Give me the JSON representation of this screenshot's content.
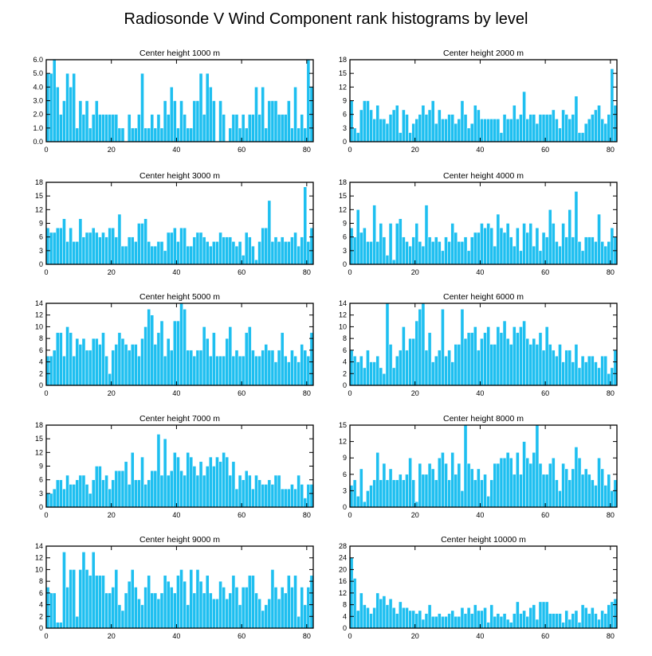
{
  "figure_title": "Radiosonde V Wind Component rank histograms by level",
  "colors": {
    "bar": "#1ebff0",
    "frame": "#000000",
    "background": "#ffffff"
  },
  "chart_data": [
    {
      "type": "bar",
      "title": "Center height 1000 m",
      "x_start": 0,
      "xlim": [
        0,
        82
      ],
      "xticks": [
        "0",
        "20",
        "40",
        "60",
        "80"
      ],
      "ylim": [
        0,
        6
      ],
      "yticks": [
        "0.0",
        "1.0",
        "2.0",
        "3.0",
        "4.0",
        "5.0",
        "6.0"
      ],
      "values": [
        5,
        5,
        6,
        4,
        2,
        3,
        5,
        4,
        5,
        1,
        3,
        2,
        3,
        1,
        2,
        3,
        2,
        2,
        2,
        2,
        2,
        2,
        1,
        1,
        0,
        2,
        1,
        1,
        2,
        5,
        1,
        1,
        2,
        1,
        2,
        1,
        3,
        2,
        4,
        3,
        1,
        3,
        2,
        1,
        1,
        3,
        3,
        5,
        2,
        5,
        4,
        3,
        0,
        3,
        2,
        0,
        1,
        2,
        2,
        1,
        2,
        1,
        2,
        2,
        4,
        2,
        4,
        1,
        3,
        3,
        3,
        2,
        2,
        2,
        3,
        1,
        4,
        1,
        2,
        1,
        6,
        4
      ],
      "xlabel": "",
      "ylabel": ""
    },
    {
      "type": "bar",
      "title": "Center height 2000 m",
      "x_start": 0,
      "xlim": [
        0,
        82
      ],
      "xticks": [
        "0",
        "20",
        "40",
        "60",
        "80"
      ],
      "ylim": [
        0,
        18
      ],
      "yticks": [
        "0",
        "3",
        "6",
        "9",
        "12",
        "15",
        "18"
      ],
      "values": [
        9,
        3,
        2,
        7,
        9,
        9,
        7,
        5,
        8,
        5,
        5,
        4,
        6,
        7,
        8,
        2,
        7,
        6,
        2,
        4,
        5,
        6,
        8,
        6,
        7,
        9,
        4,
        7,
        5,
        5,
        6,
        6,
        4,
        5,
        9,
        6,
        3,
        4,
        8,
        7,
        5,
        5,
        5,
        5,
        5,
        5,
        2,
        6,
        5,
        5,
        8,
        5,
        6,
        11,
        5,
        6,
        6,
        4,
        6,
        6,
        6,
        6,
        7,
        5,
        3,
        7,
        6,
        5,
        6,
        10,
        2,
        2,
        4,
        5,
        6,
        7,
        8,
        5,
        4,
        6,
        16,
        8
      ],
      "xlabel": "",
      "ylabel": ""
    },
    {
      "type": "bar",
      "title": "Center height 3000 m",
      "x_start": 0,
      "xlim": [
        0,
        82
      ],
      "xticks": [
        "0",
        "20",
        "40",
        "60",
        "80"
      ],
      "ylim": [
        0,
        18
      ],
      "yticks": [
        "0",
        "3",
        "6",
        "9",
        "12",
        "15",
        "18"
      ],
      "values": [
        8,
        7,
        7,
        8,
        8,
        10,
        5,
        8,
        5,
        5,
        10,
        6,
        7,
        7,
        8,
        7,
        6,
        7,
        6,
        8,
        8,
        6,
        11,
        4,
        4,
        6,
        6,
        5,
        9,
        9,
        10,
        5,
        4,
        4,
        5,
        5,
        3,
        7,
        7,
        8,
        5,
        8,
        8,
        4,
        4,
        6,
        7,
        7,
        6,
        5,
        4,
        5,
        5,
        7,
        6,
        6,
        6,
        5,
        4,
        5,
        2,
        7,
        6,
        4,
        1,
        5,
        8,
        8,
        14,
        5,
        6,
        5,
        6,
        5,
        5,
        6,
        7,
        4,
        6,
        17,
        5,
        8
      ],
      "xlabel": "",
      "ylabel": ""
    },
    {
      "type": "bar",
      "title": "Center height 4000 m",
      "x_start": 0,
      "xlim": [
        0,
        82
      ],
      "xticks": [
        "0",
        "20",
        "40",
        "60",
        "80"
      ],
      "ylim": [
        0,
        18
      ],
      "yticks": [
        "0",
        "3",
        "6",
        "9",
        "12",
        "15",
        "18"
      ],
      "values": [
        8,
        6,
        12,
        7,
        8,
        5,
        5,
        13,
        5,
        9,
        6,
        2,
        9,
        1,
        9,
        10,
        6,
        5,
        4,
        6,
        9,
        5,
        4,
        13,
        6,
        5,
        6,
        5,
        3,
        6,
        5,
        9,
        7,
        5,
        5,
        6,
        3,
        6,
        7,
        7,
        9,
        8,
        9,
        8,
        4,
        11,
        8,
        7,
        9,
        6,
        4,
        8,
        3,
        9,
        7,
        9,
        4,
        8,
        3,
        7,
        6,
        12,
        9,
        5,
        4,
        9,
        6,
        12,
        6,
        16,
        5,
        3,
        6,
        6,
        6,
        5,
        11,
        5,
        4,
        5,
        8,
        6
      ],
      "xlabel": "",
      "ylabel": ""
    },
    {
      "type": "bar",
      "title": "Center height 5000 m",
      "x_start": 0,
      "xlim": [
        0,
        82
      ],
      "xticks": [
        "0",
        "20",
        "40",
        "60",
        "80"
      ],
      "ylim": [
        0,
        14
      ],
      "yticks": [
        "0",
        "2",
        "4",
        "6",
        "8",
        "10",
        "12",
        "14"
      ],
      "values": [
        5,
        5,
        6,
        9,
        9,
        5,
        10,
        9,
        5,
        8,
        7,
        8,
        6,
        6,
        8,
        8,
        7,
        9,
        5,
        2,
        6,
        7,
        9,
        8,
        7,
        6,
        7,
        7,
        5,
        8,
        10,
        13,
        12,
        7,
        9,
        11,
        5,
        8,
        6,
        11,
        11,
        14,
        13,
        6,
        6,
        5,
        6,
        6,
        10,
        8,
        5,
        9,
        5,
        5,
        5,
        8,
        10,
        5,
        6,
        5,
        5,
        9,
        10,
        6,
        5,
        5,
        6,
        7,
        6,
        6,
        4,
        6,
        9,
        5,
        4,
        6,
        5,
        4,
        7,
        6,
        5,
        9
      ],
      "xlabel": "",
      "ylabel": ""
    },
    {
      "type": "bar",
      "title": "Center height 6000 m",
      "x_start": 0,
      "xlim": [
        0,
        82
      ],
      "xticks": [
        "0",
        "20",
        "40",
        "60",
        "80"
      ],
      "ylim": [
        0,
        14
      ],
      "yticks": [
        "0",
        "2",
        "4",
        "6",
        "8",
        "10",
        "12",
        "14"
      ],
      "values": [
        6,
        5,
        4,
        5,
        3,
        6,
        4,
        4,
        5,
        3,
        2,
        14,
        7,
        3,
        5,
        6,
        10,
        6,
        8,
        8,
        11,
        13,
        14,
        6,
        9,
        4,
        5,
        6,
        13,
        5,
        6,
        4,
        7,
        7,
        13,
        8,
        9,
        9,
        10,
        6,
        8,
        9,
        10,
        7,
        7,
        10,
        9,
        11,
        8,
        7,
        10,
        9,
        10,
        11,
        8,
        7,
        8,
        7,
        9,
        6,
        10,
        7,
        6,
        5,
        7,
        4,
        6,
        6,
        4,
        7,
        3,
        5,
        4,
        5,
        5,
        4,
        3,
        5,
        5,
        2,
        3,
        6
      ],
      "xlabel": "",
      "ylabel": ""
    },
    {
      "type": "bar",
      "title": "Center height 7000 m",
      "x_start": 0,
      "xlim": [
        0,
        82
      ],
      "xticks": [
        "0",
        "20",
        "40",
        "60",
        "80"
      ],
      "ylim": [
        0,
        18
      ],
      "yticks": [
        "0",
        "3",
        "6",
        "9",
        "12",
        "15",
        "18"
      ],
      "values": [
        3,
        3,
        4,
        6,
        6,
        4,
        7,
        5,
        5,
        6,
        7,
        7,
        5,
        3,
        6,
        9,
        9,
        6,
        7,
        4,
        6,
        8,
        8,
        8,
        10,
        5,
        12,
        6,
        6,
        11,
        5,
        6,
        8,
        8,
        16,
        7,
        15,
        7,
        8,
        12,
        11,
        8,
        7,
        12,
        11,
        9,
        7,
        10,
        7,
        9,
        11,
        9,
        11,
        10,
        12,
        11,
        7,
        10,
        4,
        7,
        6,
        8,
        7,
        4,
        7,
        6,
        5,
        5,
        6,
        5,
        7,
        7,
        4,
        4,
        4,
        5,
        4,
        7,
        5,
        2,
        5,
        5
      ],
      "xlabel": "",
      "ylabel": ""
    },
    {
      "type": "bar",
      "title": "Center height 8000 m",
      "x_start": 0,
      "xlim": [
        0,
        82
      ],
      "xticks": [
        "0",
        "20",
        "40",
        "60",
        "80"
      ],
      "ylim": [
        0,
        15
      ],
      "yticks": [
        "0",
        "3",
        "6",
        "9",
        "12",
        "15"
      ],
      "values": [
        4,
        5,
        2,
        7,
        1,
        3,
        4,
        5,
        10,
        5,
        8,
        5,
        7,
        5,
        5,
        6,
        5,
        6,
        9,
        5,
        1,
        8,
        6,
        6,
        8,
        7,
        5,
        9,
        10,
        8,
        5,
        10,
        6,
        8,
        3,
        15,
        8,
        7,
        5,
        7,
        5,
        6,
        2,
        5,
        8,
        8,
        9,
        9,
        10,
        9,
        6,
        10,
        6,
        12,
        9,
        8,
        10,
        15,
        8,
        6,
        6,
        8,
        9,
        5,
        3,
        8,
        7,
        5,
        7,
        11,
        9,
        6,
        7,
        6,
        5,
        4,
        9,
        7,
        4,
        6,
        3,
        5
      ],
      "xlabel": "",
      "ylabel": ""
    },
    {
      "type": "bar",
      "title": "Center height 9000 m",
      "x_start": 0,
      "xlim": [
        0,
        82
      ],
      "xticks": [
        "0",
        "20",
        "40",
        "60",
        "80"
      ],
      "ylim": [
        0,
        14
      ],
      "yticks": [
        "0",
        "2",
        "4",
        "6",
        "8",
        "10",
        "12",
        "14"
      ],
      "values": [
        7,
        6,
        6,
        1,
        1,
        13,
        7,
        10,
        10,
        2,
        10,
        13,
        10,
        9,
        13,
        9,
        9,
        9,
        6,
        6,
        7,
        10,
        4,
        3,
        6,
        8,
        10,
        7,
        5,
        4,
        7,
        9,
        6,
        6,
        5,
        6,
        9,
        8,
        7,
        6,
        9,
        10,
        8,
        4,
        10,
        6,
        10,
        8,
        6,
        9,
        6,
        5,
        5,
        8,
        7,
        5,
        6,
        9,
        7,
        4,
        7,
        7,
        9,
        9,
        6,
        5,
        3,
        4,
        5,
        10,
        7,
        5,
        7,
        6,
        9,
        7,
        9,
        2,
        7,
        4,
        7,
        9
      ],
      "xlabel": "",
      "ylabel": ""
    },
    {
      "type": "bar",
      "title": "Center height 10000 m",
      "x_start": 0,
      "xlim": [
        0,
        82
      ],
      "xticks": [
        "0",
        "20",
        "40",
        "60",
        "80"
      ],
      "ylim": [
        0,
        28
      ],
      "yticks": [
        "0",
        "4",
        "8",
        "12",
        "16",
        "20",
        "24",
        "28"
      ],
      "values": [
        24,
        17,
        6,
        12,
        8,
        7,
        5,
        7,
        12,
        10,
        11,
        8,
        10,
        7,
        5,
        9,
        7,
        7,
        6,
        6,
        5,
        6,
        3,
        5,
        8,
        4,
        4,
        5,
        4,
        4,
        5,
        6,
        4,
        4,
        7,
        5,
        7,
        5,
        8,
        6,
        6,
        7,
        2,
        8,
        4,
        5,
        4,
        5,
        3,
        2,
        5,
        9,
        5,
        6,
        4,
        7,
        8,
        3,
        9,
        9,
        9,
        5,
        5,
        5,
        5,
        2,
        6,
        3,
        5,
        6,
        2,
        8,
        7,
        5,
        7,
        5,
        3,
        6,
        5,
        8,
        9,
        10
      ],
      "xlabel": "",
      "ylabel": ""
    }
  ]
}
